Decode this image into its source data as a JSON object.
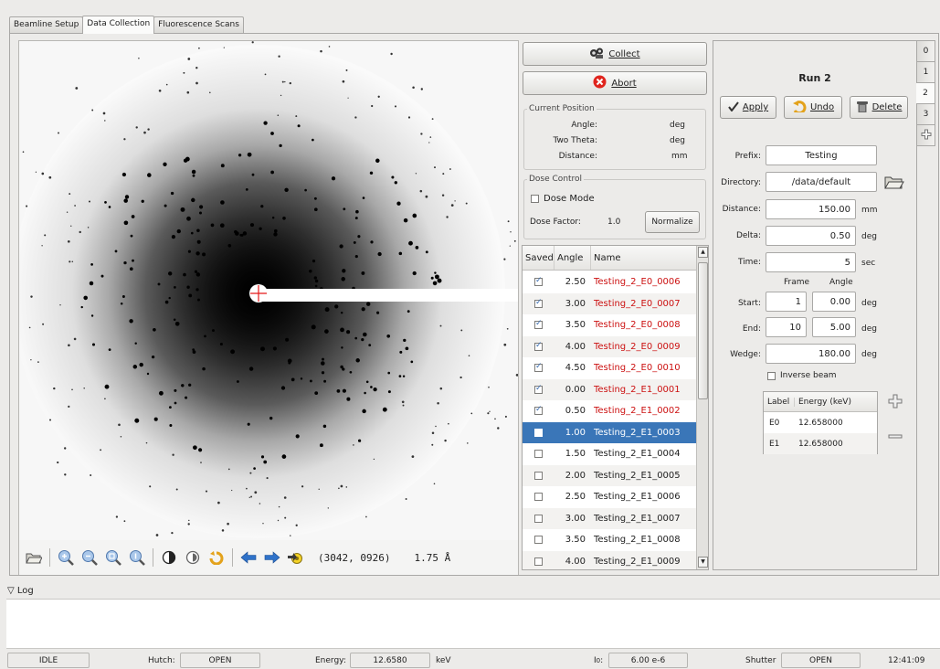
{
  "tabs": [
    "Beamline Setup",
    "Data Collection",
    "Fluorescence Scans"
  ],
  "viewer": {
    "readout_coords": "(3042, 0926)",
    "readout_resolution": "1.75 Å"
  },
  "controls": {
    "collect_label": "Collect",
    "abort_label": "Abort"
  },
  "current_position": {
    "title": "Current Position",
    "rows": [
      {
        "label": "Angle:",
        "unit": "deg"
      },
      {
        "label": "Two Theta:",
        "unit": "deg"
      },
      {
        "label": "Distance:",
        "unit": "mm"
      }
    ]
  },
  "dose_control": {
    "title": "Dose Control",
    "dose_mode_label": "Dose Mode",
    "dose_factor_label": "Dose Factor:",
    "dose_factor_value": "1.0",
    "normalize_label": "Normalize"
  },
  "frames_table": {
    "headers": [
      "Saved",
      "Angle",
      "Name"
    ],
    "rows": [
      {
        "saved": true,
        "angle": "2.50",
        "name": "Testing_2_E0_0006"
      },
      {
        "saved": true,
        "angle": "3.00",
        "name": "Testing_2_E0_0007"
      },
      {
        "saved": true,
        "angle": "3.50",
        "name": "Testing_2_E0_0008"
      },
      {
        "saved": true,
        "angle": "4.00",
        "name": "Testing_2_E0_0009"
      },
      {
        "saved": true,
        "angle": "4.50",
        "name": "Testing_2_E0_0010"
      },
      {
        "saved": true,
        "angle": "0.00",
        "name": "Testing_2_E1_0001"
      },
      {
        "saved": true,
        "angle": "0.50",
        "name": "Testing_2_E1_0002"
      },
      {
        "saved": false,
        "angle": "1.00",
        "name": "Testing_2_E1_0003",
        "selected": true
      },
      {
        "saved": false,
        "angle": "1.50",
        "name": "Testing_2_E1_0004"
      },
      {
        "saved": false,
        "angle": "2.00",
        "name": "Testing_2_E1_0005"
      },
      {
        "saved": false,
        "angle": "2.50",
        "name": "Testing_2_E1_0006"
      },
      {
        "saved": false,
        "angle": "3.00",
        "name": "Testing_2_E1_0007"
      },
      {
        "saved": false,
        "angle": "3.50",
        "name": "Testing_2_E1_0008"
      },
      {
        "saved": false,
        "angle": "4.00",
        "name": "Testing_2_E1_0009"
      }
    ]
  },
  "run": {
    "title": "Run 2",
    "apply_label": "Apply",
    "undo_label": "Undo",
    "delete_label": "Delete",
    "prefix_label": "Prefix:",
    "prefix_value": "Testing",
    "directory_label": "Directory:",
    "directory_value": "/data/default",
    "distance_label": "Distance:",
    "distance_value": "150.00",
    "distance_unit": "mm",
    "delta_label": "Delta:",
    "delta_value": "0.50",
    "delta_unit": "deg",
    "time_label": "Time:",
    "time_value": "5",
    "time_unit": "sec",
    "frame_header": "Frame",
    "angle_header": "Angle",
    "start_label": "Start:",
    "start_frame": "1",
    "start_angle": "0.00",
    "start_unit": "deg",
    "end_label": "End:",
    "end_frame": "10",
    "end_angle": "5.00",
    "end_unit": "deg",
    "wedge_label": "Wedge:",
    "wedge_value": "180.00",
    "wedge_unit": "deg",
    "inverse_beam_label": "Inverse beam",
    "energy_headers": [
      "Label",
      "Energy (keV)"
    ],
    "energies": [
      {
        "label": "E0",
        "energy": "12.658000"
      },
      {
        "label": "E1",
        "energy": "12.658000"
      }
    ]
  },
  "run_tabs": [
    "0",
    "1",
    "2",
    "3"
  ],
  "log": {
    "title": "Log"
  },
  "status": {
    "state": "IDLE",
    "hutch_label": "Hutch:",
    "hutch_value": "OPEN",
    "energy_label": "Energy:",
    "energy_value": "12.6580",
    "energy_unit": "keV",
    "i0_label": "I",
    "i0_sub": "0",
    "i0_value": "6.00 e-6",
    "shutter_label": "Shutter",
    "shutter_value": "OPEN",
    "time": "12:41:09"
  }
}
